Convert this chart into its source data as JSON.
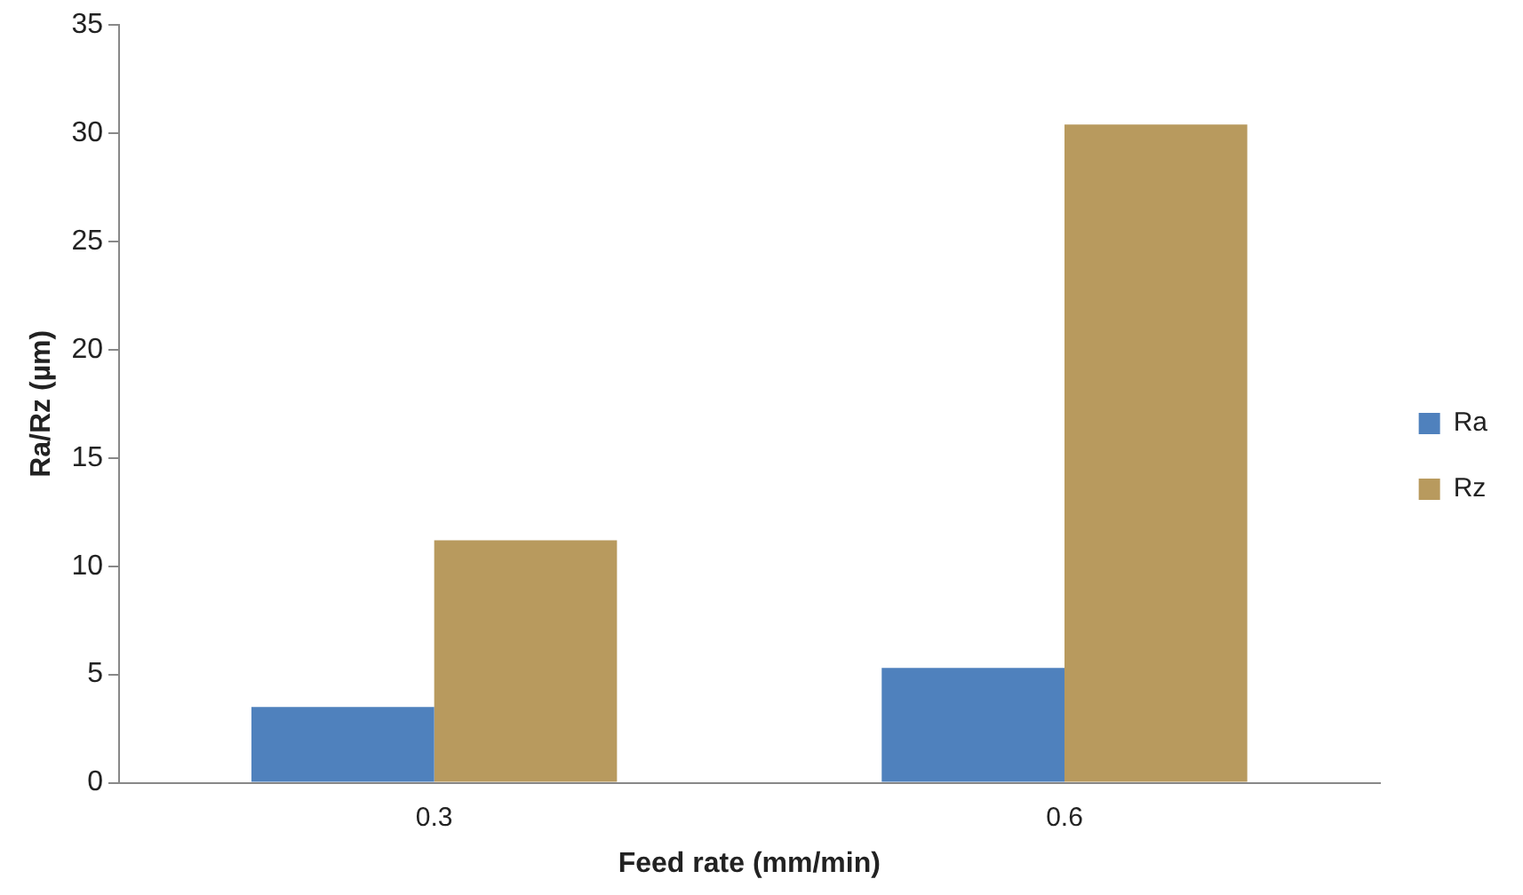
{
  "chart_data": {
    "type": "bar",
    "xlabel": "Feed rate (mm/min)",
    "ylabel": "Ra/Rz (µm)",
    "categories": [
      "0.3",
      "0.6"
    ],
    "series": [
      {
        "name": "Ra",
        "color": "#4f81bd",
        "values": [
          3.5,
          5.3
        ]
      },
      {
        "name": "Rz",
        "color": "#b89a5e",
        "values": [
          11.2,
          30.4
        ]
      }
    ],
    "ylim": [
      0,
      35
    ],
    "yticks": [
      0,
      5,
      10,
      15,
      20,
      25,
      30,
      35
    ],
    "grid": false,
    "legend": "right"
  }
}
